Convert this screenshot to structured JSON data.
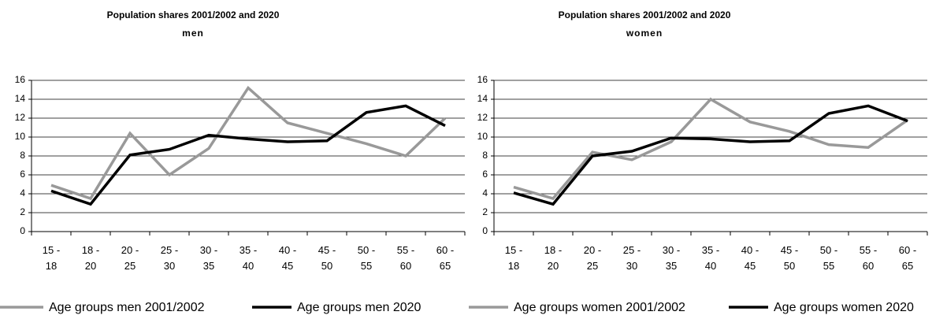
{
  "chart_data": [
    {
      "type": "line",
      "title": "Population shares 2001/2002 and 2020",
      "subtitle": "men",
      "categories": [
        "15 - 18",
        "18 - 20",
        "20 - 25",
        "25 - 30",
        "30 - 35",
        "35 - 40",
        "40 - 45",
        "45 - 50",
        "50 - 55",
        "55 - 60",
        "60 - 65"
      ],
      "series": [
        {
          "name": "Age groups men 2001/2002",
          "color": "#999999",
          "values": [
            4.9,
            3.5,
            10.4,
            6.0,
            8.8,
            15.2,
            11.5,
            10.4,
            9.3,
            8.0,
            12.0
          ]
        },
        {
          "name": "Age groups men 2020",
          "color": "#000000",
          "values": [
            4.3,
            2.9,
            8.1,
            8.7,
            10.2,
            9.8,
            9.5,
            9.6,
            12.6,
            13.3,
            11.2
          ]
        }
      ],
      "ylim": [
        0,
        16
      ],
      "yticks": [
        0,
        2,
        4,
        6,
        8,
        10,
        12,
        14,
        16
      ],
      "grid": true
    },
    {
      "type": "line",
      "title": "Population shares 2001/2002 and 2020",
      "subtitle": "women",
      "categories": [
        "15 - 18",
        "18 - 20",
        "20 - 25",
        "25 - 30",
        "30 - 35",
        "35 - 40",
        "40 - 45",
        "45 - 50",
        "50 - 55",
        "55 - 60",
        "60 - 65"
      ],
      "series": [
        {
          "name": "Age groups women 2001/2002",
          "color": "#999999",
          "values": [
            4.7,
            3.5,
            8.4,
            7.6,
            9.5,
            14.0,
            11.6,
            10.6,
            9.2,
            8.9,
            11.8
          ]
        },
        {
          "name": "Age groups women 2020",
          "color": "#000000",
          "values": [
            4.1,
            2.9,
            8.0,
            8.5,
            9.9,
            9.8,
            9.5,
            9.6,
            12.5,
            13.3,
            11.7
          ]
        }
      ],
      "ylim": [
        0,
        16
      ],
      "yticks": [
        0,
        2,
        4,
        6,
        8,
        10,
        12,
        14,
        16
      ],
      "grid": true
    }
  ]
}
